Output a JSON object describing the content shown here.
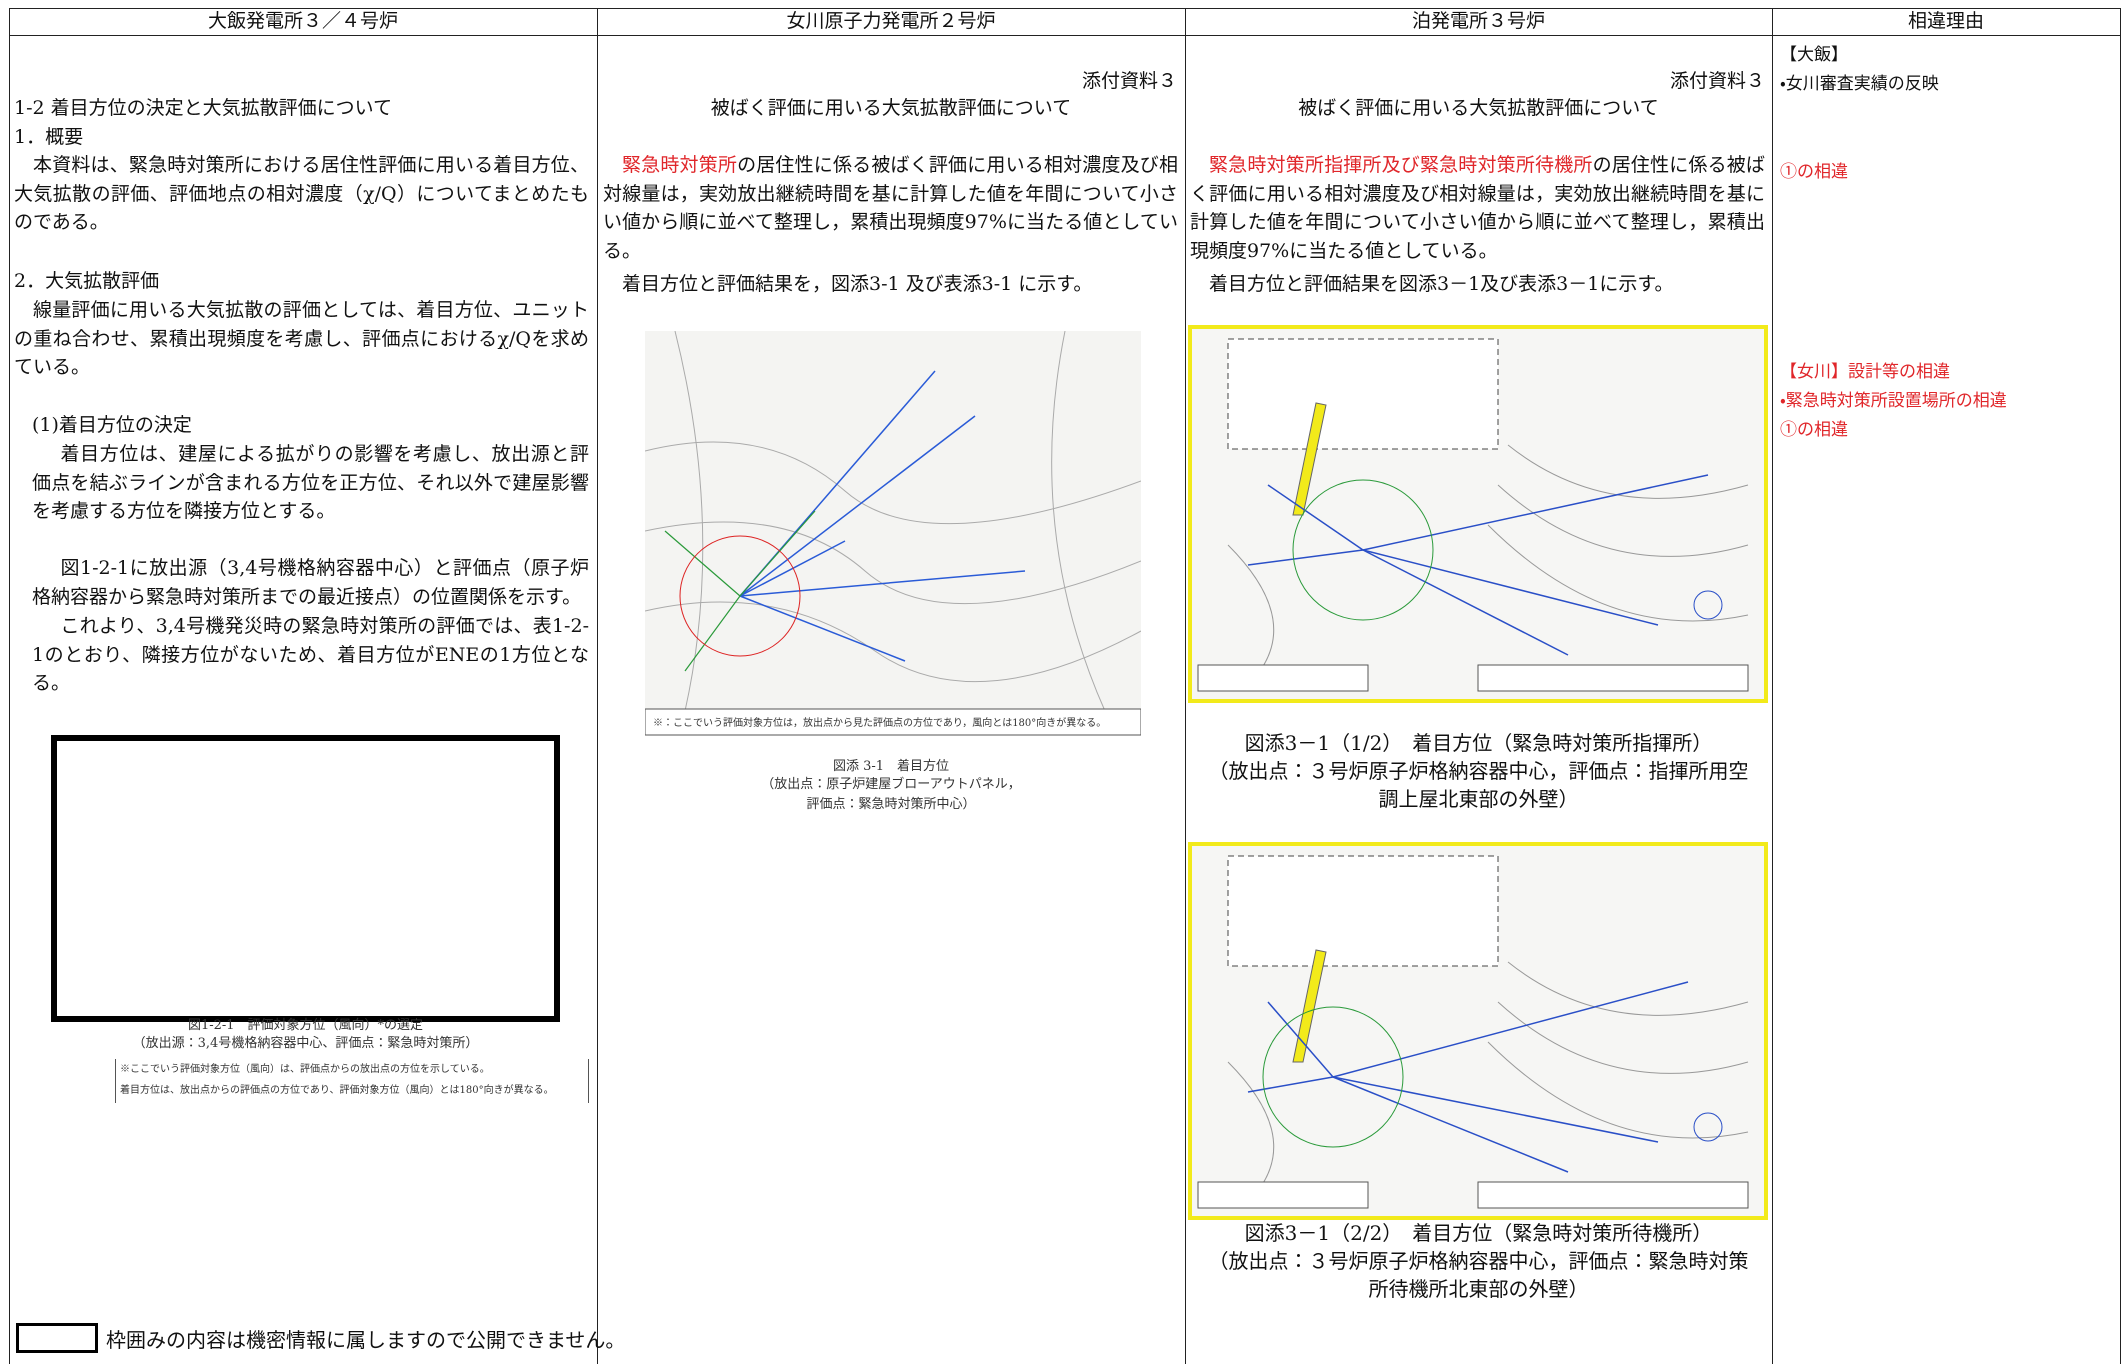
{
  "header": {
    "columns": [
      "大飯発電所３／４号炉",
      "女川原子力発電所２号炉",
      "泊発電所３号炉",
      "相違理由"
    ]
  },
  "ohi": {
    "title": "1-2 着目方位の決定と大気拡散評価について",
    "s1_heading": "1．概要",
    "s1_text": "本資料は、緊急時対策所における居住性評価に用いる着目方位、大気拡散の評価、評価地点の相対濃度（χ/Q）についてまとめたものである。",
    "s2_heading": "2．大気拡散評価",
    "s2_text": "線量評価に用いる大気拡散の評価としては、着目方位、ユニットの重ね合わせ、累積出現頻度を考慮し、評価点におけるχ/Qを求めている。",
    "s3_heading": "(1)着目方位の決定",
    "s3_paragraphs": [
      "着目方位は、建屋による拡がりの影響を考慮し、放出源と評価点を結ぶラインが含まれる方位を正方位、それ以外で建屋影響を考慮する方位を隣接方位とする。",
      "図1-2-1に放出源（3,4号機格納容器中心）と評価点（原子炉格納容器から緊急時対策所までの最近接点）の位置関係を示す。",
      "これより、3,4号機発災時の緊急時対策所の評価では、表1-2-1のとおり、隣接方位がないため、着目方位がENEの1方位となる。"
    ],
    "figure_caption": "図1-2-1　評価対象方位（風向）*の選定",
    "figure_subcaption": "（放出源：3,4号機格納容器中心、評価点：緊急時対策所）",
    "figure_note": [
      "※ここでいう評価対象方位（風向）は、評価点からの放出点の方位を示している。",
      "着目方位は、放出点からの評価点の方位であり、評価対象方位（風向）とは180°向きが異なる。"
    ],
    "confidential_note": "枠囲みの内容は機密情報に属しますので公開できません。"
  },
  "onagawa": {
    "attachment": "添付資料３",
    "title": "被ばく評価に用いる大気拡散評価について",
    "para1_red": "緊急時対策所",
    "para1_rest": "の居住性に係る被ばく評価に用いる相対濃度及び相対線量は，実効放出継続時間を基に計算した値を年間について小さい値から順に並べて整理し，累積出現頻度97%に当たる値としている。",
    "para2": "着目方位と評価結果を，図添3-1 及び表添3-1 に示す。",
    "figure_note": "※：ここでいう評価対象方位は，放出点から見た評価点の方位であり，風向とは180°向きが異なる。",
    "figure_caption": [
      "図添 3-1　着目方位",
      "（放出点：原子炉建屋ブローアウトパネル，",
      "評価点：緊急時対策所中心）"
    ]
  },
  "tomari": {
    "attachment": "添付資料３",
    "title": "被ばく評価に用いる大気拡散評価について",
    "para1_red": "緊急時対策所指揮所及び緊急時対策所待機所",
    "para1_rest": "の居住性に係る被ばく評価に用いる相対濃度及び相対線量は，実効放出継続時間を基に計算した値を年間について小さい値から順に並べて整理し，累積出現頻度97%に当たる値としている。",
    "para2": "着目方位と評価結果を図添3－1及び表添3－1に示す。",
    "figure1_caption": [
      "図添3－1（1/2）　着目方位（緊急時対策所指揮所）",
      "（放出点：３号炉原子炉格納容器中心，評価点：指揮所用空調上屋北東部の外壁）"
    ],
    "figure2_caption": [
      "図添3－1（2/2）　着目方位（緊急時対策所待機所）",
      "（放出点：３号炉原子炉格納容器中心，評価点：緊急時対策所待機所北東部の外壁）"
    ]
  },
  "reasons": [
    "【大飯】",
    "・女川審査実績の反映",
    "①の相違",
    "【女川】設計等の相違",
    "・緊急時対策所設置場所の相違",
    "①の相違"
  ]
}
